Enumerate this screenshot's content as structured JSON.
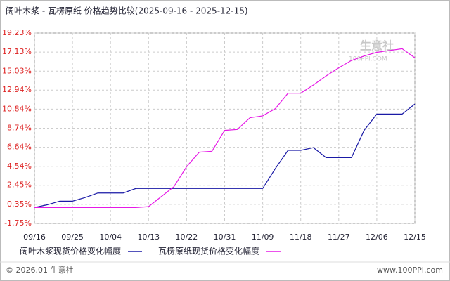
{
  "chart_data": {
    "type": "line",
    "title": "阔叶木浆 - 瓦楞原纸 价格趋势比较(2025-09-16 - 2025-12-15)",
    "categories": [
      "09/16",
      null,
      null,
      "09/25",
      null,
      null,
      "10/04",
      null,
      null,
      "10/13",
      null,
      null,
      "10/22",
      null,
      null,
      "10/31",
      null,
      null,
      "11/09",
      null,
      null,
      "11/18",
      null,
      null,
      "11/27",
      null,
      null,
      "12/06",
      null,
      null,
      "12/15"
    ],
    "series": [
      {
        "name": "阔叶木浆现货价格变化幅度",
        "color": "#1a1aa6",
        "values": [
          0,
          0.3,
          0.7,
          0.7,
          1.1,
          1.6,
          1.6,
          1.6,
          2.1,
          2.1,
          2.1,
          2.1,
          2.1,
          2.1,
          2.1,
          2.1,
          2.1,
          2.1,
          2.1,
          4.3,
          6.3,
          6.3,
          6.6,
          5.5,
          5.5,
          5.5,
          8.5,
          10.3,
          10.3,
          10.3,
          11.4
        ]
      },
      {
        "name": "瓦楞原纸现货价格变化幅度",
        "color": "#e619e6",
        "values": [
          0,
          0,
          0,
          0,
          0,
          0,
          0,
          0,
          0,
          0.1,
          1.2,
          2.3,
          4.5,
          6.1,
          6.2,
          8.5,
          8.6,
          9.9,
          10.1,
          10.9,
          12.6,
          12.6,
          13.5,
          14.5,
          15.4,
          16.2,
          16.7,
          17.1,
          17.3,
          17.5,
          16.5
        ]
      }
    ],
    "ylim": [
      -1.75,
      19.23
    ],
    "yticks": [
      {
        "value": -1.75,
        "label": "-1.75%"
      },
      {
        "value": 0.35,
        "label": "0.35%"
      },
      {
        "value": 2.45,
        "label": "2.45%"
      },
      {
        "value": 4.54,
        "label": "4.54%"
      },
      {
        "value": 6.64,
        "label": "6.64%"
      },
      {
        "value": 8.74,
        "label": "8.74%"
      },
      {
        "value": 10.84,
        "label": "10.84%"
      },
      {
        "value": 12.94,
        "label": "12.94%"
      },
      {
        "value": 15.03,
        "label": "15.03%"
      },
      {
        "value": 17.13,
        "label": "17.13%"
      },
      {
        "value": 19.23,
        "label": "19.23%"
      }
    ],
    "grid": true,
    "watermark": [
      "生意社",
      "100PPI.COM"
    ],
    "footer": {
      "left": "© 2026.01 生意社",
      "right": "www.100PPI.com"
    }
  }
}
